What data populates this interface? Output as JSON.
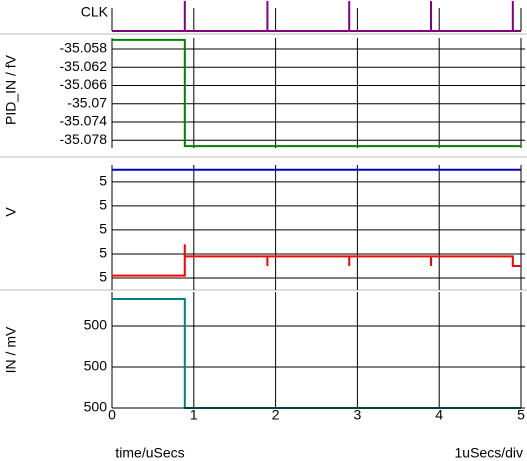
{
  "chart_data": [
    {
      "type": "line",
      "ylabel": "CLK",
      "ylim": [
        0,
        1
      ],
      "grid": true,
      "series": [
        {
          "color": "#800080",
          "x": [
            0,
            0.89,
            0.89,
            0.89,
            1.9,
            1.9,
            1.9,
            2.9,
            2.9,
            2.9,
            3.9,
            3.9,
            3.9,
            4.9,
            4.9,
            4.9,
            5
          ],
          "values": [
            0,
            0,
            1,
            0,
            0,
            1,
            0,
            0,
            1,
            0,
            0,
            1,
            0,
            0,
            1,
            0,
            0
          ]
        }
      ]
    },
    {
      "type": "line",
      "ylabel": "PID_IN / fV",
      "ylim": [
        -35.0797,
        -35.0556
      ],
      "grid": true,
      "yticks": [
        -35.058,
        -35.062,
        -35.066,
        -35.07,
        -35.074,
        -35.078
      ],
      "series": [
        {
          "color": "#008000",
          "x": [
            0,
            0.89,
            0.89,
            5
          ],
          "values": [
            -35.056,
            -35.056,
            -35.0793,
            -35.0793
          ]
        }
      ]
    },
    {
      "type": "line",
      "ylabel": "V",
      "ylim": [
        4.99975,
        5.00027
      ],
      "grid": true,
      "yticks": [
        {
          "value": 5.0002,
          "label": "5"
        },
        {
          "value": 5.0001,
          "label": "5"
        },
        5,
        {
          "value": 4.9999,
          "label": "5"
        },
        {
          "value": 4.9998,
          "label": "5"
        }
      ],
      "series": [
        {
          "color": "#0000c0",
          "x": [
            0,
            5
          ],
          "values": [
            5.00025,
            5.00025
          ]
        },
        {
          "color": "#ff0000",
          "x": [
            0,
            0.89,
            0.89,
            0.89,
            1.9,
            1.9,
            1.9,
            2.9,
            2.9,
            2.9,
            3.9,
            3.9,
            3.9,
            4.9,
            4.9,
            5
          ],
          "values": [
            4.99981,
            4.99981,
            4.99994,
            4.99989,
            4.99989,
            4.99985,
            4.99989,
            4.99989,
            4.99985,
            4.99989,
            4.99989,
            4.99985,
            4.99989,
            4.99989,
            4.99985,
            4.99985
          ]
        }
      ]
    },
    {
      "type": "line",
      "ylabel": "IN / mV",
      "ylim": [
        500,
        500.283
      ],
      "grid": true,
      "yticks": [
        {
          "value": 500.2,
          "label": "500"
        },
        {
          "value": 500.1,
          "label": "500"
        },
        500
      ],
      "xlim": [
        0,
        5
      ],
      "xticks": [
        0,
        1,
        2,
        3,
        4,
        5
      ],
      "xlabel": "time/uSecs",
      "note": "1uSecs/div",
      "series": [
        {
          "color": "#008080",
          "x": [
            0,
            0.89,
            0.89,
            5
          ],
          "values": [
            500.266,
            500.266,
            500,
            500
          ]
        }
      ]
    }
  ]
}
